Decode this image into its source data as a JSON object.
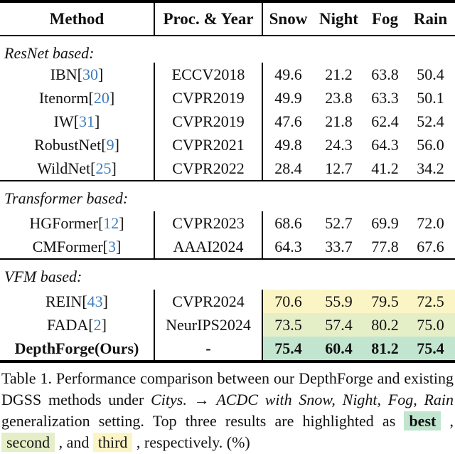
{
  "colors": {
    "citation_blue": "#3D7BBD",
    "highlight_best": "#C2E5CF",
    "highlight_second": "#E4EFC7",
    "highlight_third": "#FBF5C5"
  },
  "misc": {
    "lb": " [",
    "rb": "]"
  },
  "table": {
    "header": {
      "method": "Method",
      "proc": "Proc. & Year",
      "cols": [
        "Snow",
        "Night",
        "Fog",
        "Rain"
      ]
    },
    "sections": [
      {
        "label": "ResNet based:",
        "rows": [
          {
            "name": "IBN",
            "ref": "30",
            "proc": "ECCV2018",
            "values": [
              "49.6",
              "21.2",
              "63.8",
              "50.4"
            ]
          },
          {
            "name": "Itenorm",
            "ref": "20",
            "proc": "CVPR2019",
            "values": [
              "49.9",
              "23.8",
              "63.3",
              "50.1"
            ]
          },
          {
            "name": "IW",
            "ref": "31",
            "proc": "CVPR2019",
            "values": [
              "47.6",
              "21.8",
              "62.4",
              "52.4"
            ]
          },
          {
            "name": "RobustNet",
            "ref": "9",
            "proc": "CVPR2021",
            "values": [
              "49.8",
              "24.3",
              "64.3",
              "56.0"
            ]
          },
          {
            "name": "WildNet",
            "ref": "25",
            "proc": "CVPR2022",
            "values": [
              "28.4",
              "12.7",
              "41.2",
              "34.2"
            ]
          }
        ]
      },
      {
        "label": "Transformer based:",
        "rows": [
          {
            "name": "HGFormer",
            "ref": "12",
            "proc": "CVPR2023",
            "values": [
              "68.6",
              "52.7",
              "69.9",
              "72.0"
            ]
          },
          {
            "name": "CMFormer",
            "ref": "3",
            "proc": "AAAI2024",
            "values": [
              "64.3",
              "33.7",
              "77.8",
              "67.6"
            ]
          }
        ]
      },
      {
        "label": "VFM based:",
        "rows": [
          {
            "name": "REIN",
            "ref": "43",
            "proc": "CVPR2024",
            "values": [
              "70.6",
              "55.9",
              "79.5",
              "72.5"
            ],
            "highlight": "third"
          },
          {
            "name": "FADA",
            "ref": "2",
            "proc": "NeurIPS2024",
            "values": [
              "73.5",
              "57.4",
              "80.2",
              "75.0"
            ],
            "highlight": "second"
          }
        ]
      }
    ],
    "ours_row": {
      "name": "DepthForge(Ours)",
      "proc": "-",
      "values": [
        "75.4",
        "60.4",
        "81.2",
        "75.4"
      ],
      "highlight": "best"
    }
  },
  "caption": {
    "segments": [
      {
        "text": "Table 1.  Performance comparison between our DepthForge and existing DGSS methods under "
      },
      {
        "text": "Citys."
      },
      {
        "text": " → "
      },
      {
        "text": "ACDC with Snow, Night, Fog, Rain"
      },
      {
        "text": " generalization setting. Top three results are highlighted as "
      },
      {
        "text": "best"
      },
      {
        "text": " , "
      },
      {
        "text": "second"
      },
      {
        "text": " , and "
      },
      {
        "text": "third"
      },
      {
        "text": " , respectively. (%)"
      }
    ]
  }
}
